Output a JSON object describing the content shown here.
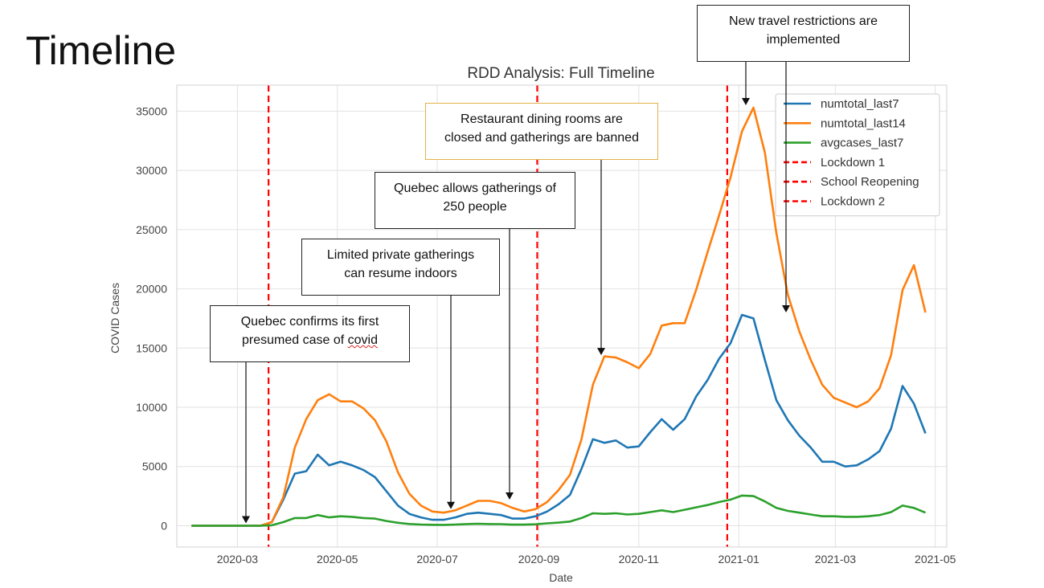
{
  "slide": {
    "title": "Timeline"
  },
  "chart_data": {
    "type": "line",
    "title": "RDD Analysis: Full Timeline",
    "xlabel": "Date",
    "ylabel": "COVID Cases",
    "xlim": [
      "2020-01-24",
      "2021-05-08"
    ],
    "ylim": [
      -1800,
      37200
    ],
    "grid": true,
    "legend_position": "top-right",
    "x_ticks": [
      "2020-03",
      "2020-05",
      "2020-07",
      "2020-09",
      "2020-11",
      "2021-01",
      "2021-03",
      "2021-05"
    ],
    "y_ticks": [
      0,
      5000,
      10000,
      15000,
      20000,
      25000,
      30000,
      35000
    ],
    "x": [
      "2020-02-02",
      "2020-02-09",
      "2020-02-16",
      "2020-02-23",
      "2020-03-01",
      "2020-03-08",
      "2020-03-15",
      "2020-03-22",
      "2020-03-29",
      "2020-04-05",
      "2020-04-12",
      "2020-04-19",
      "2020-04-26",
      "2020-05-03",
      "2020-05-10",
      "2020-05-17",
      "2020-05-24",
      "2020-05-31",
      "2020-06-07",
      "2020-06-14",
      "2020-06-21",
      "2020-06-28",
      "2020-07-05",
      "2020-07-12",
      "2020-07-19",
      "2020-07-26",
      "2020-08-02",
      "2020-08-09",
      "2020-08-16",
      "2020-08-23",
      "2020-08-30",
      "2020-09-06",
      "2020-09-13",
      "2020-09-20",
      "2020-09-27",
      "2020-10-04",
      "2020-10-11",
      "2020-10-18",
      "2020-10-25",
      "2020-11-01",
      "2020-11-08",
      "2020-11-15",
      "2020-11-22",
      "2020-11-29",
      "2020-12-06",
      "2020-12-13",
      "2020-12-20",
      "2020-12-27",
      "2021-01-03",
      "2021-01-10",
      "2021-01-17",
      "2021-01-24",
      "2021-01-31",
      "2021-02-07",
      "2021-02-14",
      "2021-02-21",
      "2021-02-28",
      "2021-03-07",
      "2021-03-14",
      "2021-03-21",
      "2021-03-28",
      "2021-04-04",
      "2021-04-11",
      "2021-04-18",
      "2021-04-25"
    ],
    "series": [
      {
        "name": "numtotal_last7",
        "color": "#1f77b4",
        "style": "solid",
        "values": [
          0,
          0,
          0,
          0,
          0,
          0,
          0,
          300,
          2200,
          4400,
          4600,
          6000,
          5100,
          5400,
          5100,
          4700,
          4100,
          2900,
          1700,
          1000,
          700,
          500,
          500,
          700,
          1000,
          1100,
          1000,
          900,
          600,
          600,
          800,
          1200,
          1800,
          2600,
          4800,
          7300,
          7000,
          7200,
          6600,
          6700,
          7900,
          9000,
          8100,
          9000,
          10900,
          12300,
          14100,
          15400,
          17800,
          17500,
          14000,
          10600,
          8900,
          7600,
          6600,
          5400,
          5400,
          5000,
          5100,
          5600,
          6300,
          8200,
          11800,
          10300,
          7800
        ]
      },
      {
        "name": "numtotal_last14",
        "color": "#ff7f0e",
        "style": "solid",
        "values": [
          0,
          0,
          0,
          0,
          0,
          0,
          0,
          300,
          2400,
          6600,
          9000,
          10600,
          11100,
          10500,
          10500,
          9900,
          8900,
          7100,
          4500,
          2700,
          1700,
          1200,
          1100,
          1300,
          1700,
          2100,
          2100,
          1900,
          1500,
          1200,
          1400,
          2000,
          3000,
          4300,
          7300,
          11900,
          14300,
          14200,
          13800,
          13300,
          14500,
          16900,
          17100,
          17100,
          19900,
          23100,
          26200,
          29400,
          33300,
          35300,
          31500,
          24700,
          19500,
          16400,
          14000,
          11900,
          10800,
          10400,
          10000,
          10500,
          11600,
          14400,
          19900,
          22000,
          18000
        ]
      },
      {
        "name": "avgcases_last7",
        "color": "#2ca02c",
        "style": "solid",
        "values": [
          0,
          0,
          0,
          0,
          0,
          0,
          0,
          40,
          300,
          650,
          650,
          900,
          700,
          800,
          750,
          650,
          600,
          400,
          250,
          150,
          100,
          80,
          70,
          100,
          140,
          160,
          140,
          130,
          90,
          90,
          120,
          200,
          260,
          350,
          650,
          1050,
          1000,
          1050,
          950,
          1000,
          1150,
          1300,
          1150,
          1350,
          1550,
          1750,
          2000,
          2200,
          2550,
          2500,
          2050,
          1500,
          1250,
          1100,
          950,
          800,
          800,
          750,
          750,
          800,
          900,
          1150,
          1700,
          1500,
          1100
        ]
      },
      {
        "name": "Lockdown 1",
        "color": "#ff0000",
        "style": "dashed",
        "x": "2020-03-20"
      },
      {
        "name": "School Reopening",
        "color": "#ff0000",
        "style": "dashed",
        "x": "2020-08-31"
      },
      {
        "name": "Lockdown 2",
        "color": "#ff0000",
        "style": "dashed",
        "x": "2020-12-25"
      }
    ]
  },
  "annotations": [
    {
      "text_lines": [
        "Quebec confirms its first",
        "presumed case of "
      ],
      "tail": "covid",
      "arrow_to": {
        "x": "2020-02-25",
        "y": 0
      }
    },
    {
      "text_lines": [
        "Limited private gatherings",
        "can resume indoors"
      ],
      "arrow_to": {
        "x": "2020-07-03",
        "y": 1200
      }
    },
    {
      "text_lines": [
        "Quebec allows gatherings of",
        "250 people"
      ],
      "arrow_to": {
        "x": "2020-08-10",
        "y": 2000
      }
    },
    {
      "text_lines": [
        "Restaurant dining rooms are",
        "closed and gatherings are banned"
      ],
      "arrow_to": {
        "x": "2020-10-01",
        "y": 14200
      }
    },
    {
      "text_lines": [
        "New travel restrictions are",
        "implemented"
      ],
      "arrow_to": {
        "x": "2021-01-08",
        "y": 35300
      }
    }
  ]
}
